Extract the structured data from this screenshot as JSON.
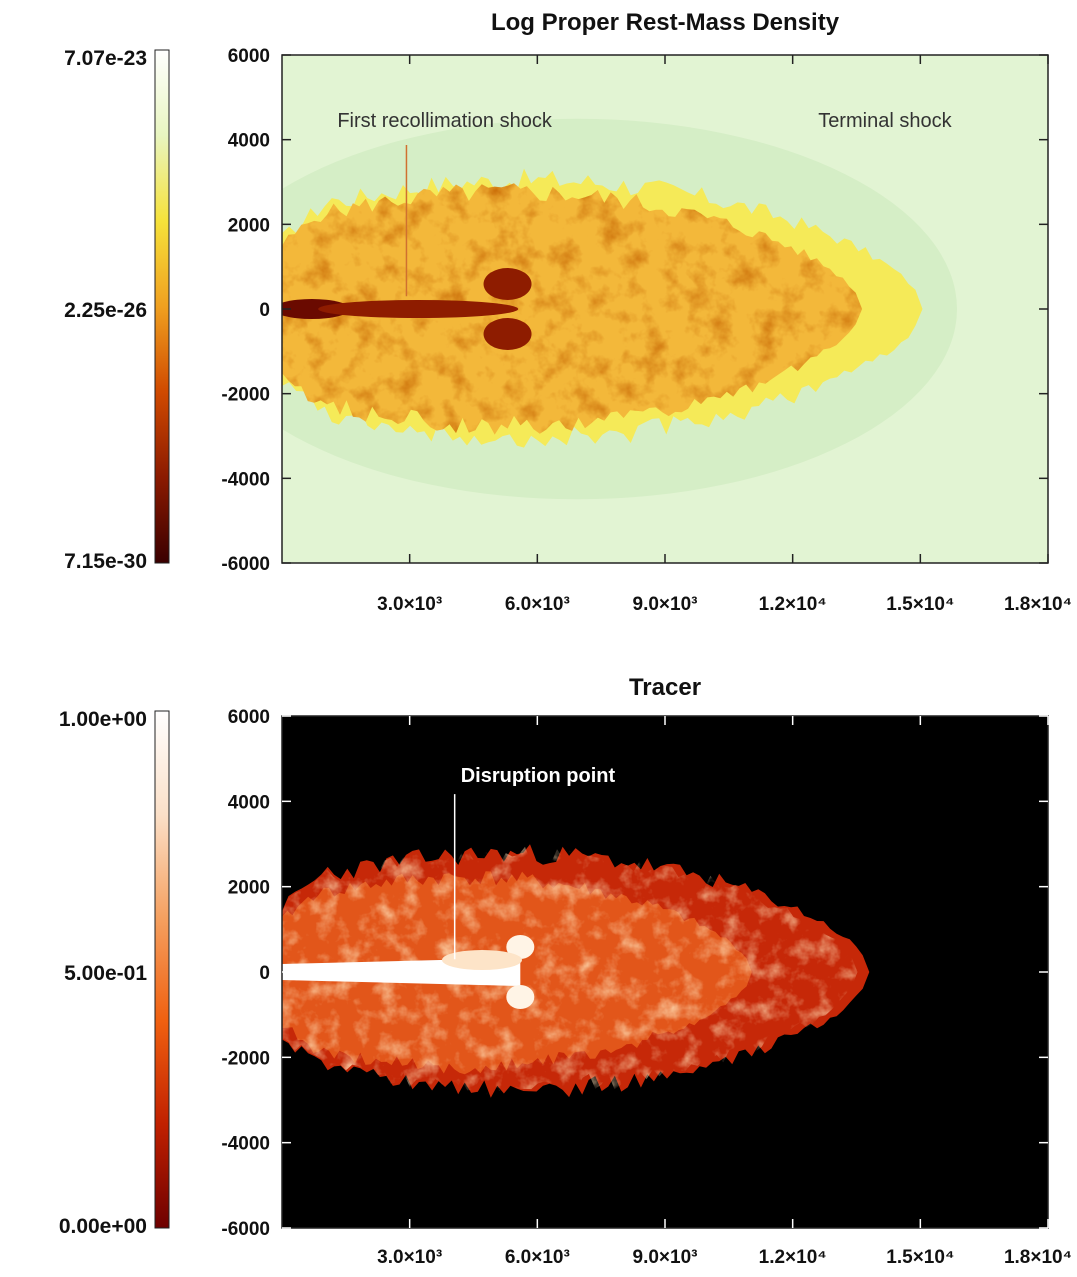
{
  "chart_data": [
    {
      "type": "heatmap",
      "title": "Log Proper Rest-Mass Density",
      "xlabel": "",
      "ylabel": "",
      "x_ticks": [
        "3.0×10³",
        "6.0×10³",
        "9.0×10³",
        "1.2×10⁴",
        "1.5×10⁴",
        "1.8×10⁴"
      ],
      "x_tick_values": [
        3000,
        6000,
        9000,
        12000,
        15000,
        18000
      ],
      "xlim": [
        0,
        18000
      ],
      "y_ticks": [
        "6000",
        "4000",
        "2000",
        "0",
        "-2000",
        "-4000",
        "-6000"
      ],
      "y_tick_values": [
        6000,
        4000,
        2000,
        0,
        -2000,
        -4000,
        -6000
      ],
      "ylim": [
        -6000,
        6000
      ],
      "colorbar": {
        "labels": [
          "7.07e-23",
          "2.25e-26",
          "7.15e-30"
        ],
        "max": 7.07e-23,
        "mid": 2.25e-26,
        "min": 7.15e-30,
        "scale": "log"
      },
      "colormap": [
        "#3a0000",
        "#8b1a00",
        "#d04a00",
        "#f0a020",
        "#f6e23a",
        "#e8f5c0",
        "#ffffff"
      ],
      "background_color": "#e2f4d3",
      "annotations": [
        {
          "text": "First recollimation shock",
          "x": 1400,
          "y": 300
        },
        {
          "text": "Terminal shock",
          "x": 14500,
          "y": 4300
        }
      ],
      "cocoon_extent": {
        "x_head": 14200,
        "y_half_width": 2900
      },
      "bow_shock_x": 15400
    },
    {
      "type": "heatmap",
      "title": "Tracer",
      "xlabel": "",
      "ylabel": "",
      "x_ticks": [
        "3.0×10³",
        "6.0×10³",
        "9.0×10³",
        "1.2×10⁴",
        "1.5×10⁴",
        "1.8×10⁴"
      ],
      "x_tick_values": [
        3000,
        6000,
        9000,
        12000,
        15000,
        18000
      ],
      "xlim": [
        0,
        18000
      ],
      "y_ticks": [
        "6000",
        "4000",
        "2000",
        "0",
        "-2000",
        "-4000",
        "-6000"
      ],
      "y_tick_values": [
        6000,
        4000,
        2000,
        0,
        -2000,
        -4000,
        -6000
      ],
      "ylim": [
        -6000,
        6000
      ],
      "colorbar": {
        "labels": [
          "1.00e+00",
          "5.00e-01",
          "0.00e+00"
        ],
        "max": 1.0,
        "mid": 0.5,
        "min": 0.0,
        "scale": "linear"
      },
      "colormap": [
        "#6e0000",
        "#c02000",
        "#f06010",
        "#f5a060",
        "#fbe0c8",
        "#ffffff"
      ],
      "background_color": "#000000",
      "annotations": [
        {
          "text": "Disruption point",
          "x": 4000,
          "y": 300
        }
      ],
      "cocoon_extent": {
        "x_head": 13800,
        "y_half_width": 2800
      }
    }
  ]
}
